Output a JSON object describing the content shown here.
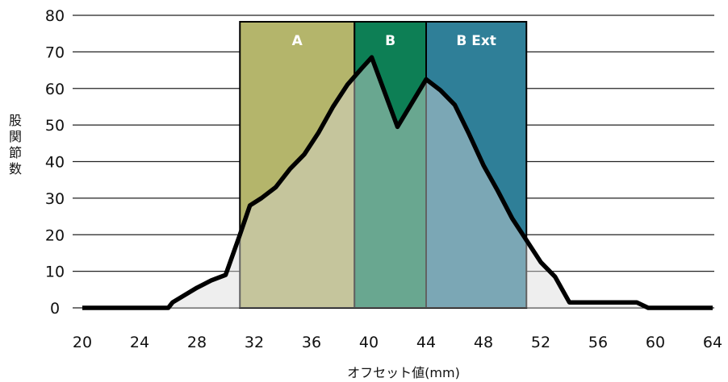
{
  "chart_data": {
    "type": "area",
    "xlabel": "オフセット値(mm)",
    "ylabel": "股関節数",
    "xlim": [
      20,
      64
    ],
    "ylim": [
      0,
      80
    ],
    "x_ticks": [
      20,
      24,
      28,
      32,
      36,
      40,
      44,
      48,
      52,
      56,
      60,
      64
    ],
    "y_ticks": [
      0,
      10,
      20,
      30,
      40,
      50,
      60,
      70,
      80
    ],
    "grid": "horizontal",
    "bands": [
      {
        "label": "A",
        "from": 31,
        "to": 39,
        "color": "#b4b56b"
      },
      {
        "label": "B",
        "from": 39,
        "to": 44,
        "color": "#0d7f55"
      },
      {
        "label": "B Ext",
        "from": 44,
        "to": 51,
        "color": "#2f7f98"
      }
    ],
    "series": [
      {
        "x": [
          20,
          22,
          24,
          26,
          26.3,
          28,
          29,
          30,
          31,
          31.7,
          32.5,
          33.5,
          34.5,
          35.5,
          36.5,
          37.5,
          38.5,
          39.5,
          40.2,
          42,
          44,
          45,
          46,
          47,
          48,
          49,
          50,
          51,
          52,
          53,
          54,
          56,
          58,
          58.7,
          59.5,
          62,
          64
        ],
        "y": [
          0,
          0,
          0,
          0,
          1.5,
          5.5,
          7.5,
          9,
          20,
          28,
          30,
          33,
          38,
          42,
          48,
          55,
          61,
          65.5,
          68.5,
          49.5,
          62.5,
          59.5,
          55.5,
          47.5,
          39,
          32,
          24.5,
          18.5,
          12.5,
          8.5,
          1.5,
          1.5,
          1.5,
          1.5,
          0,
          0,
          0
        ],
        "color": "#000000",
        "fill": "#d9d9d9"
      }
    ]
  }
}
